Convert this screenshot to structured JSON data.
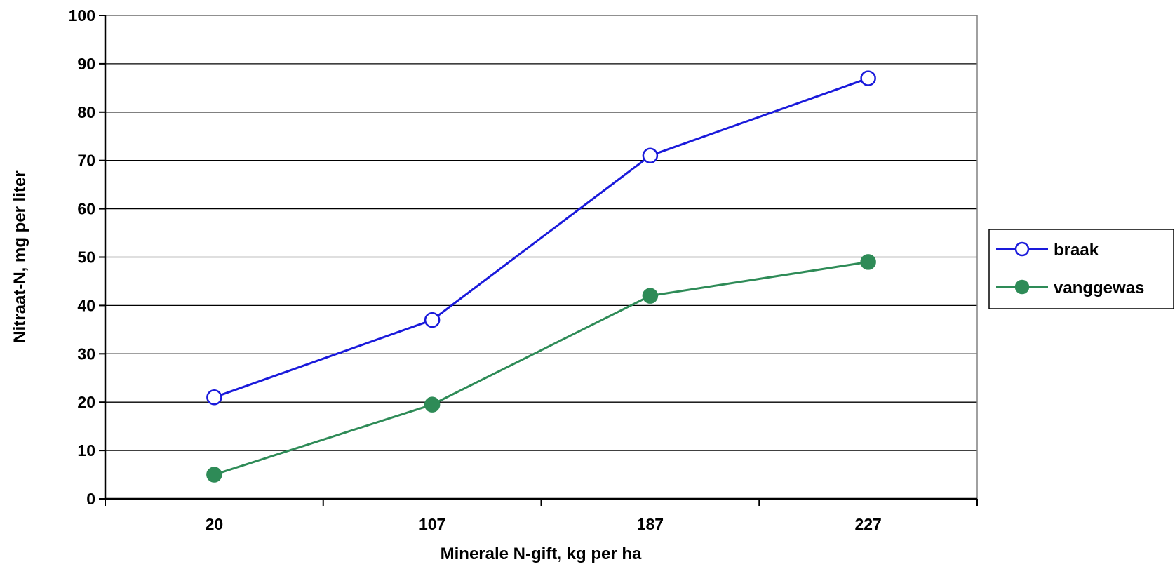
{
  "chart_data": {
    "type": "line",
    "title": "",
    "xlabel": "Minerale N-gift, kg per ha",
    "ylabel": "Nitraat-N, mg per liter",
    "categories": [
      "20",
      "107",
      "187",
      "227"
    ],
    "ylim": [
      0,
      100
    ],
    "yticks": [
      "0",
      "10",
      "20",
      "30",
      "40",
      "50",
      "60",
      "70",
      "80",
      "90",
      "100"
    ],
    "grid": true,
    "legend_position": "right",
    "series": [
      {
        "name": "braak",
        "values": [
          21,
          37,
          71,
          87
        ],
        "color": "#1a1adb",
        "marker": "hollow-circle"
      },
      {
        "name": "vanggewas",
        "values": [
          5,
          19.5,
          42,
          49
        ],
        "color": "#2e8b57",
        "marker": "filled-circle"
      }
    ]
  }
}
